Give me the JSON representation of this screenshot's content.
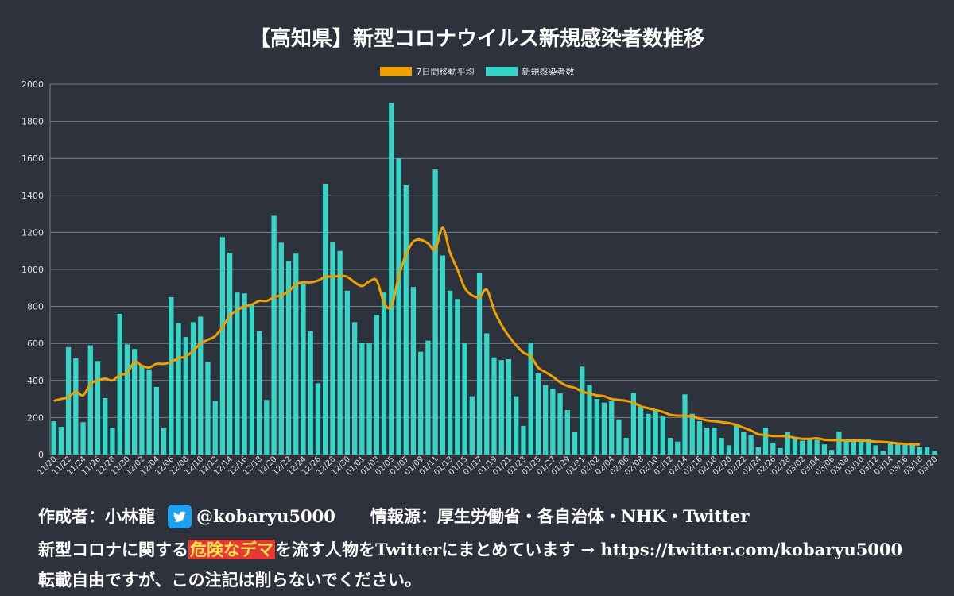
{
  "title": "【高知県】新型コロナウイルス新規感染者数推移",
  "legend": {
    "avg_label": "7日間移動平均",
    "cases_label": "新規感染者数"
  },
  "colors": {
    "bar": "#35d6c8",
    "line": "#f0a000",
    "grid": "#7a7f8a",
    "axis_text": "#e0e0e0"
  },
  "chart_data": {
    "type": "bar",
    "title": "【高知県】新型コロナウイルス新規感染者数推移",
    "xlabel": "",
    "ylabel": "",
    "ylim": [
      0,
      2000
    ],
    "yticks": [
      0,
      200,
      400,
      600,
      800,
      1000,
      1200,
      1400,
      1600,
      1800,
      2000
    ],
    "start_date": "11/20",
    "x_tick_labels": [
      "11/20",
      "11/22",
      "11/24",
      "11/26",
      "11/28",
      "11/30",
      "12/02",
      "12/04",
      "12/06",
      "12/08",
      "12/10",
      "12/12",
      "12/14",
      "12/16",
      "12/18",
      "12/20",
      "12/22",
      "12/24",
      "12/26",
      "12/28",
      "12/30",
      "01/01",
      "01/03",
      "01/05",
      "01/07",
      "01/09",
      "01/11",
      "01/13",
      "01/15",
      "01/17",
      "01/19",
      "01/21",
      "01/23",
      "01/25",
      "01/27",
      "01/29",
      "01/31",
      "02/02",
      "02/04",
      "02/06",
      "02/08",
      "02/10",
      "02/12",
      "02/14",
      "02/16",
      "02/18",
      "02/20",
      "02/22",
      "02/24",
      "02/26",
      "02/28",
      "03/02",
      "03/04",
      "03/06",
      "03/08",
      "03/10",
      "03/12",
      "03/14",
      "03/16",
      "03/18",
      "03/20"
    ],
    "series": [
      {
        "name": "新規感染者数",
        "type": "bar",
        "values": [
          180,
          150,
          580,
          520,
          175,
          590,
          505,
          305,
          145,
          760,
          595,
          570,
          480,
          460,
          365,
          145,
          850,
          710,
          635,
          715,
          745,
          500,
          290,
          1175,
          1090,
          875,
          870,
          810,
          665,
          295,
          1290,
          1145,
          1045,
          1085,
          920,
          665,
          385,
          1460,
          1150,
          1100,
          885,
          715,
          605,
          600,
          755,
          875,
          1900,
          1600,
          1455,
          905,
          555,
          615,
          1540,
          1075,
          885,
          840,
          600,
          315,
          980,
          655,
          525,
          510,
          515,
          315,
          155,
          605,
          440,
          375,
          355,
          330,
          240,
          120,
          475,
          375,
          300,
          280,
          290,
          190,
          90,
          335,
          260,
          220,
          245,
          205,
          90,
          70,
          325,
          220,
          180,
          145,
          145,
          90,
          50,
          165,
          120,
          105,
          40,
          145,
          65,
          35,
          120,
          90,
          75,
          85,
          80,
          55,
          25,
          125,
          85,
          75,
          75,
          85,
          50,
          20,
          65,
          65,
          60,
          55,
          40,
          40,
          20
        ]
      },
      {
        "name": "7日間移動平均",
        "type": "line",
        "values": [
          290,
          300,
          310,
          340,
          320,
          380,
          400,
          410,
          400,
          430,
          440,
          500,
          480,
          470,
          490,
          490,
          500,
          520,
          530,
          560,
          600,
          620,
          640,
          690,
          750,
          780,
          800,
          810,
          830,
          830,
          850,
          860,
          880,
          920,
          930,
          930,
          940,
          960,
          960,
          965,
          960,
          930,
          910,
          935,
          940,
          820,
          800,
          960,
          1080,
          1150,
          1160,
          1140,
          1110,
          1225,
          1090,
          1000,
          900,
          860,
          850,
          890,
          780,
          700,
          640,
          590,
          550,
          530,
          470,
          445,
          420,
          390,
          370,
          360,
          340,
          330,
          320,
          315,
          300,
          295,
          290,
          280,
          260,
          250,
          240,
          230,
          215,
          210,
          210,
          205,
          195,
          185,
          180,
          175,
          170,
          160,
          145,
          130,
          110,
          105,
          100,
          100,
          98,
          90,
          85,
          85,
          88,
          80,
          78,
          78,
          75,
          75,
          75,
          73,
          70,
          68,
          65,
          60,
          58,
          55,
          55
        ]
      }
    ]
  },
  "footer": {
    "author": "作成者：小林龍",
    "handle": "@kobaryu5000",
    "sources": "情報源：厚生労働省・各自治体・NHK・Twitter",
    "line2_pre": "新型コロナに関する",
    "line2_highlight": "危険なデマ",
    "line2_post": "を流す人物をTwitterにまとめています → https://twitter.com/kobaryu5000",
    "line3": "転載自由ですが、この注記は削らないでください。"
  }
}
